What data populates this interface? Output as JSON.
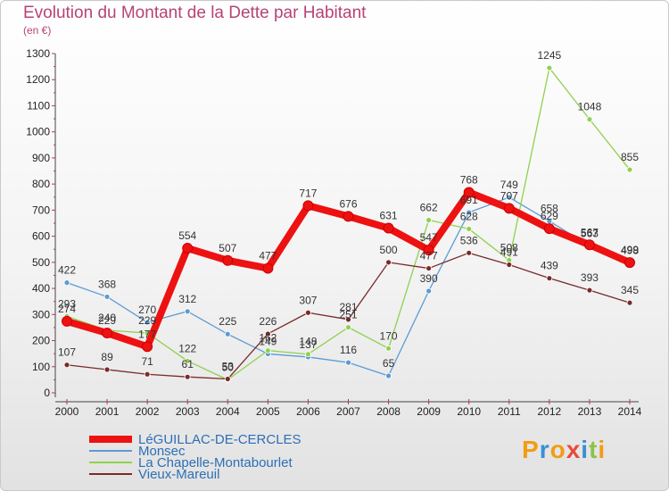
{
  "title": "Evolution du Montant de la Dette par Habitant",
  "unit": "(en €)",
  "logo": "Proxiti",
  "chart_data": {
    "type": "line",
    "x": [
      "2000",
      "2001",
      "2002",
      "2003",
      "2004",
      "2005",
      "2006",
      "2007",
      "2008",
      "2009",
      "2010",
      "2011",
      "2012",
      "2013",
      "2014"
    ],
    "ylim": [
      0,
      1300
    ],
    "yticks": [
      0,
      100,
      200,
      300,
      400,
      500,
      600,
      700,
      800,
      900,
      1000,
      1100,
      1200,
      1300
    ],
    "grid": false,
    "legend_position": "bottom-left",
    "series": [
      {
        "name": "LéGUILLAC-DE-CERCLES",
        "color": "#ee1111",
        "values": [
          274,
          229,
          177,
          554,
          507,
          477,
          717,
          676,
          631,
          547,
          768,
          707,
          629,
          567,
          499
        ]
      },
      {
        "name": "Monsec",
        "color": "#5b9bd5",
        "values": [
          422,
          368,
          270,
          312,
          225,
          149,
          137,
          116,
          65,
          390,
          691,
          749,
          658,
          563,
          498
        ]
      },
      {
        "name": "La Chapelle-Montabourlet",
        "color": "#8fd14f",
        "values": [
          293,
          240,
          229,
          122,
          50,
          162,
          148,
          251,
          170,
          662,
          628,
          508,
          1245,
          1048,
          855
        ]
      },
      {
        "name": "Vieux-Mareuil",
        "color": "#7a2a2a",
        "values": [
          107,
          89,
          71,
          61,
          53,
          226,
          307,
          281,
          500,
          477,
          536,
          491,
          439,
          393,
          345
        ]
      }
    ]
  }
}
